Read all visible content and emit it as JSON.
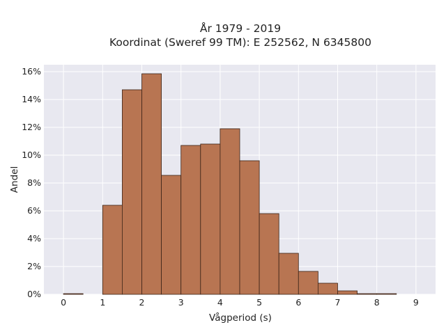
{
  "chart_data": {
    "type": "bar",
    "title_line1": "År 1979 - 2019",
    "title_line2": "Koordinat (Sweref 99 TM): E 252562, N 6345800",
    "xlabel": "Vågperiod (s)",
    "ylabel": "Andel",
    "bin_width": 0.5,
    "bin_starts": [
      0,
      0.5,
      1,
      1.5,
      2,
      2.5,
      3,
      3.5,
      4,
      4.5,
      5,
      5.5,
      6,
      6.5,
      7,
      7.5,
      8,
      8.5
    ],
    "values": [
      0.05,
      0,
      6.4,
      14.7,
      15.85,
      8.55,
      10.7,
      10.8,
      11.9,
      9.6,
      5.8,
      2.95,
      1.65,
      0.8,
      0.25,
      0.05,
      0.05,
      0
    ],
    "xlim": [
      -0.5,
      9.5
    ],
    "ylim": [
      0,
      16.5
    ],
    "x_ticks": [
      0,
      1,
      2,
      3,
      4,
      5,
      6,
      7,
      8,
      9
    ],
    "x_tick_labels": [
      "0",
      "1",
      "2",
      "3",
      "4",
      "5",
      "6",
      "7",
      "8",
      "9"
    ],
    "y_ticks": [
      0,
      2,
      4,
      6,
      8,
      10,
      12,
      14,
      16
    ],
    "y_tick_labels": [
      "0%",
      "2%",
      "4%",
      "6%",
      "8%",
      "10%",
      "12%",
      "14%",
      "16%"
    ],
    "grid": true,
    "colors": {
      "bar_fill": "#b87552",
      "bar_edge": "#3b2418",
      "plot_background": "#e8e8f0",
      "grid": "#ffffff"
    }
  }
}
